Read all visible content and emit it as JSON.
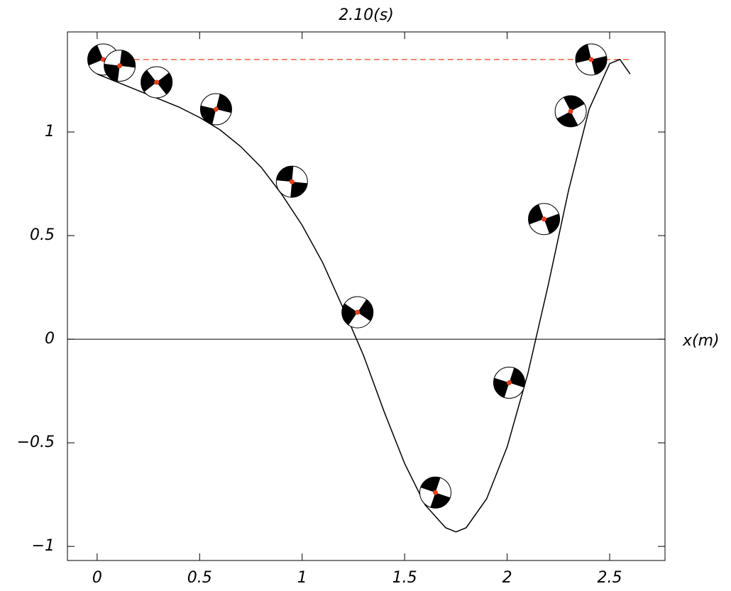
{
  "chart_data": {
    "type": "line",
    "title": "2.10(s)",
    "x_label": "x(m)",
    "x": [
      0,
      0.1,
      0.2,
      0.3,
      0.4,
      0.5,
      0.6,
      0.7,
      0.8,
      0.9,
      1.0,
      1.1,
      1.2,
      1.3,
      1.4,
      1.5,
      1.6,
      1.7,
      1.75,
      1.8,
      1.9,
      2.0,
      2.1,
      2.2,
      2.3,
      2.4,
      2.5,
      2.55,
      2.6
    ],
    "values": [
      1.28,
      1.24,
      1.2,
      1.16,
      1.12,
      1.07,
      1.01,
      0.93,
      0.83,
      0.7,
      0.55,
      0.37,
      0.15,
      -0.08,
      -0.35,
      -0.6,
      -0.8,
      -0.91,
      -0.93,
      -0.91,
      -0.77,
      -0.52,
      -0.17,
      0.26,
      0.72,
      1.11,
      1.33,
      1.35,
      1.28
    ],
    "color": "#000000",
    "markers": {
      "x": [
        0.03,
        0.11,
        0.29,
        0.58,
        0.95,
        1.27,
        1.65,
        2.01,
        2.18,
        2.31,
        2.41
      ],
      "values": [
        1.35,
        1.32,
        1.24,
        1.11,
        0.76,
        0.13,
        -0.74,
        -0.21,
        0.58,
        1.1,
        1.35
      ],
      "color": "#e8401c"
    },
    "reference_line": {
      "y": 1.35,
      "x": [
        0,
        2.6
      ],
      "color": "#e8401c"
    },
    "xlim": [
      -0.145,
      2.77
    ],
    "ylim": [
      -1.068,
      1.483
    ],
    "xticks": [
      0,
      0.5,
      1,
      1.5,
      2,
      2.5
    ],
    "yticks": [
      {
        "value": -1,
        "label": "−1"
      },
      {
        "value": -0.5,
        "label": "−0.5"
      },
      0,
      0.5,
      1
    ]
  }
}
